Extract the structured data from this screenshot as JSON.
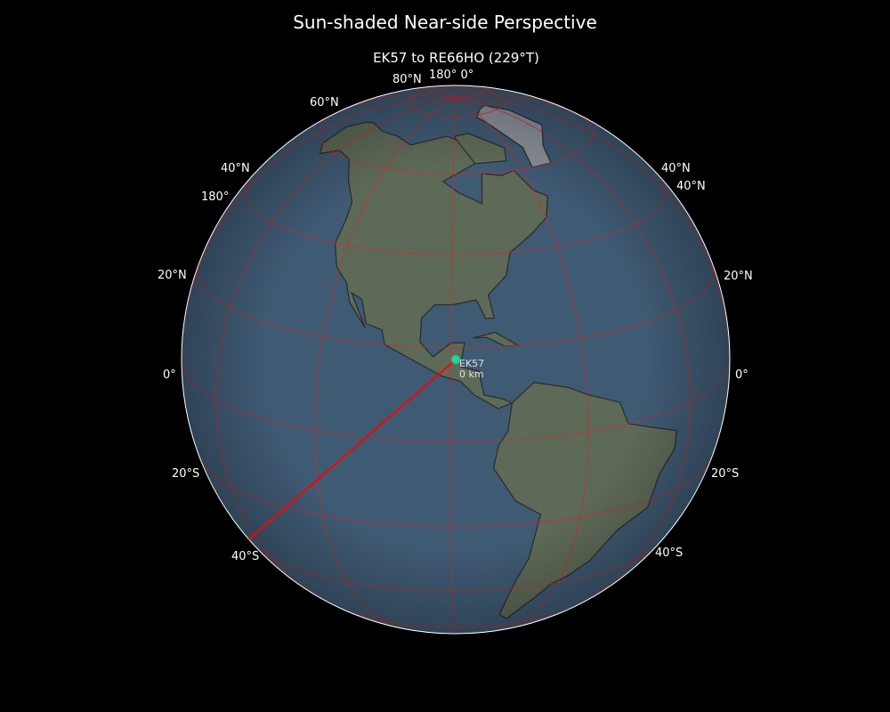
{
  "title": "Sun-shaded Near-side Perspective",
  "subtitle": "EK57 to RE66HO (229°T)",
  "map": {
    "projection": "near-side perspective",
    "center": {
      "lon": -89,
      "lat": 17.5
    },
    "graticule_color": "#d62728",
    "ocean_color": "#3f5a73",
    "land_color": "#5e6a58",
    "path_color": "#ff0000",
    "bearing_deg": 229,
    "station": {
      "name": "EK57",
      "distance": "0 km",
      "color": "#1fd39a"
    }
  },
  "grid_labels": {
    "top": [
      "80°N",
      "180° 0°",
      "60°N"
    ],
    "left": [
      "40°N",
      "180°",
      "20°N",
      "0°",
      "20°S",
      "40°S"
    ],
    "right": [
      "40°N",
      "40°N",
      "20°N",
      "0°",
      "20°S",
      "40°S"
    ]
  }
}
